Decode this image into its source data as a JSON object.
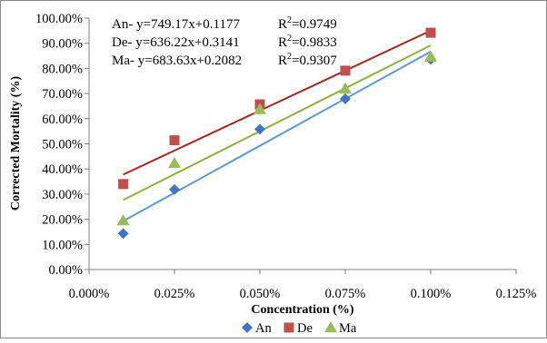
{
  "chart_data": {
    "type": "scatter",
    "title": "",
    "xlabel": "Concentration (%)",
    "ylabel": "Corrected Mortality (%)",
    "xlim": [
      0,
      0.00125
    ],
    "ylim": [
      0,
      1.0
    ],
    "x_ticks": [
      "0.000%",
      "0.025%",
      "0.050%",
      "0.075%",
      "0.100%",
      "0.125%"
    ],
    "y_ticks": [
      "0.00%",
      "10.00%",
      "20.00%",
      "30.00%",
      "40.00%",
      "50.00%",
      "60.00%",
      "70.00%",
      "80.00%",
      "90.00%",
      "100.00%"
    ],
    "grid": false,
    "legend_position": "bottom",
    "x": [
      0.0001,
      0.00025,
      0.0005,
      0.00075,
      0.001
    ],
    "series": [
      {
        "name": "An",
        "marker": "diamond",
        "color": "#4472C4",
        "trend_color": "#5B9BD5",
        "values": [
          0.143,
          0.318,
          0.558,
          0.679,
          0.836
        ],
        "trend": {
          "slope": 749.17,
          "intercept": 0.1177
        },
        "equation": "An- y=749.17x+0.1177",
        "r2_label": "R",
        "r2_value": "=0.9749"
      },
      {
        "name": "De",
        "marker": "square",
        "color": "#C0504D",
        "trend_color": "#A52A1E",
        "values": [
          0.34,
          0.514,
          0.657,
          0.791,
          0.942
        ],
        "trend": {
          "slope": 636.22,
          "intercept": 0.3141
        },
        "equation": "De- y=636.22x+0.3141",
        "r2_label": "R",
        "r2_value": "=0.9833"
      },
      {
        "name": "Ma",
        "marker": "triangle",
        "color": "#9BBB59",
        "trend_color": "#8CB13C",
        "values": [
          0.195,
          0.423,
          0.637,
          0.719,
          0.846
        ],
        "trend": {
          "slope": 683.63,
          "intercept": 0.2082
        },
        "equation": "Ma- y=683.63x+0.2082",
        "r2_label": "R",
        "r2_value": "=0.9307"
      }
    ]
  }
}
